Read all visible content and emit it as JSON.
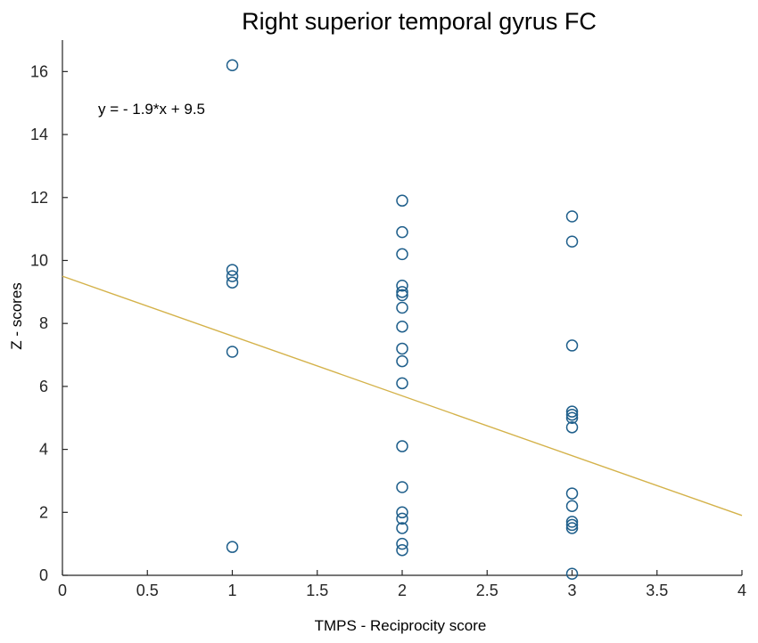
{
  "chart_data": {
    "type": "scatter",
    "title": "Right superior temporal gyrus FC",
    "xlabel": "TMPS - Reciprocity score",
    "ylabel": "Z - scores",
    "xlim": [
      0,
      4
    ],
    "ylim": [
      0,
      17
    ],
    "xticks": [
      0,
      0.5,
      1,
      1.5,
      2,
      2.5,
      3,
      3.5,
      4
    ],
    "xtick_labels": [
      "0",
      "0.5",
      "1",
      "1.5",
      "2",
      "2.5",
      "3",
      "3.5",
      "4"
    ],
    "yticks": [
      0,
      2,
      4,
      6,
      8,
      10,
      12,
      14,
      16
    ],
    "ytick_labels": [
      "0",
      "2",
      "4",
      "6",
      "8",
      "10",
      "12",
      "14",
      "16"
    ],
    "grid": false,
    "annotation": "y = - 1.9*x + 9.5",
    "marker_color": "#1f5f8b",
    "fit_color": "#d4b24a",
    "points": [
      {
        "x": 1,
        "y": 16.2
      },
      {
        "x": 1,
        "y": 9.7
      },
      {
        "x": 1,
        "y": 9.5
      },
      {
        "x": 1,
        "y": 9.3
      },
      {
        "x": 1,
        "y": 7.1
      },
      {
        "x": 1,
        "y": 0.9
      },
      {
        "x": 2,
        "y": 11.9
      },
      {
        "x": 2,
        "y": 10.9
      },
      {
        "x": 2,
        "y": 10.2
      },
      {
        "x": 2,
        "y": 9.2
      },
      {
        "x": 2,
        "y": 9.0
      },
      {
        "x": 2,
        "y": 8.9
      },
      {
        "x": 2,
        "y": 8.5
      },
      {
        "x": 2,
        "y": 7.9
      },
      {
        "x": 2,
        "y": 7.2
      },
      {
        "x": 2,
        "y": 6.8
      },
      {
        "x": 2,
        "y": 6.1
      },
      {
        "x": 2,
        "y": 4.1
      },
      {
        "x": 2,
        "y": 2.8
      },
      {
        "x": 2,
        "y": 2.0
      },
      {
        "x": 2,
        "y": 1.8
      },
      {
        "x": 2,
        "y": 1.5
      },
      {
        "x": 2,
        "y": 1.0
      },
      {
        "x": 2,
        "y": 0.8
      },
      {
        "x": 3,
        "y": 11.4
      },
      {
        "x": 3,
        "y": 10.6
      },
      {
        "x": 3,
        "y": 7.3
      },
      {
        "x": 3,
        "y": 5.2
      },
      {
        "x": 3,
        "y": 5.1
      },
      {
        "x": 3,
        "y": 5.0
      },
      {
        "x": 3,
        "y": 4.7
      },
      {
        "x": 3,
        "y": 2.6
      },
      {
        "x": 3,
        "y": 2.2
      },
      {
        "x": 3,
        "y": 1.7
      },
      {
        "x": 3,
        "y": 1.6
      },
      {
        "x": 3,
        "y": 1.5
      },
      {
        "x": 3,
        "y": 0.05
      }
    ],
    "fit_line": {
      "slope": -1.9,
      "intercept": 9.5
    }
  }
}
